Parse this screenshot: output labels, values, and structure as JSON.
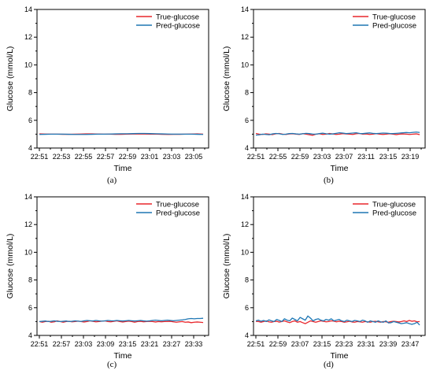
{
  "colors": {
    "true_series": "#e8262c",
    "pred_series": "#1f77b4"
  },
  "panels": [
    {
      "caption": "(a)",
      "chart_data": {
        "type": "line",
        "xlabel": "Time",
        "ylabel": "Glucose (mmol/L)",
        "ylim": [
          4,
          14
        ],
        "yticks": [
          4,
          6,
          8,
          10,
          12,
          14
        ],
        "xticklabels": [
          "22:51",
          "22:53",
          "22:55",
          "22:57",
          "22:59",
          "23:01",
          "23:03",
          "23:05"
        ],
        "legend": "top-right",
        "series": [
          {
            "name": "True-glucose",
            "color": "#e8262c",
            "values": [
              5.02,
              5.01,
              5.0,
              5.0,
              4.99,
              4.99,
              5.0,
              5.01,
              5.02,
              5.02,
              5.01,
              5.0,
              5.0,
              4.99,
              4.99,
              5.0,
              5.01,
              5.02,
              5.01,
              5.0,
              5.0,
              4.99,
              4.98,
              4.99,
              4.99,
              5.0,
              5.01,
              5.02,
              5.0
            ]
          },
          {
            "name": "Pred-glucose",
            "color": "#1f77b4",
            "values": [
              4.98,
              4.99,
              5.0,
              5.0,
              5.0,
              4.99,
              4.98,
              4.98,
              4.98,
              4.99,
              5.0,
              5.0,
              5.01,
              5.02,
              5.03,
              5.03,
              5.04,
              5.05,
              5.05,
              5.04,
              5.03,
              5.02,
              5.01,
              5.0,
              5.0,
              5.0,
              5.0,
              4.99,
              4.98
            ]
          }
        ]
      }
    },
    {
      "caption": "(b)",
      "chart_data": {
        "type": "line",
        "xlabel": "Time",
        "ylabel": "Glucose (mmol/L)",
        "ylim": [
          4,
          14
        ],
        "yticks": [
          4,
          6,
          8,
          10,
          12,
          14
        ],
        "xticklabels": [
          "22:51",
          "22:55",
          "22:59",
          "23:03",
          "23:07",
          "23:11",
          "23:15",
          "23:19"
        ],
        "legend": "top-right",
        "series": [
          {
            "name": "True-glucose",
            "color": "#e8262c",
            "values": [
              5.05,
              5.0,
              4.98,
              5.02,
              5.0,
              4.97,
              5.03,
              5.05,
              5.0,
              4.98,
              5.02,
              5.03,
              5.0,
              4.98,
              5.04,
              5.0,
              4.96,
              4.92,
              5.0,
              5.03,
              4.98,
              5.0,
              5.05,
              5.02,
              4.98,
              5.0,
              5.04,
              5.02,
              5.0,
              4.98,
              5.03,
              5.05,
              5.0,
              5.02,
              4.98,
              5.0,
              5.04,
              5.0,
              4.98,
              5.0,
              5.03,
              5.0,
              4.97,
              5.0,
              5.02,
              5.0,
              4.98,
              5.0,
              5.02,
              4.97
            ]
          },
          {
            "name": "Pred-glucose",
            "color": "#1f77b4",
            "values": [
              4.93,
              4.95,
              5.0,
              4.98,
              4.96,
              5.02,
              5.05,
              5.03,
              4.98,
              5.0,
              5.04,
              5.05,
              5.02,
              5.0,
              5.03,
              5.06,
              5.04,
              5.01,
              5.0,
              5.04,
              5.07,
              5.03,
              5.0,
              5.02,
              5.06,
              5.1,
              5.08,
              5.04,
              5.06,
              5.08,
              5.1,
              5.05,
              5.04,
              5.07,
              5.09,
              5.06,
              5.04,
              5.06,
              5.08,
              5.07,
              5.05,
              5.04,
              5.06,
              5.08,
              5.1,
              5.12,
              5.1,
              5.13,
              5.15,
              5.12
            ]
          }
        ]
      }
    },
    {
      "caption": "(c)",
      "chart_data": {
        "type": "line",
        "xlabel": "Time",
        "ylabel": "Glucose (mmol/L)",
        "ylim": [
          4,
          14
        ],
        "yticks": [
          4,
          6,
          8,
          10,
          12,
          14
        ],
        "xticklabels": [
          "22:51",
          "22:57",
          "23:03",
          "23:09",
          "23:15",
          "23:21",
          "23:27",
          "23:33"
        ],
        "legend": "top-right",
        "series": [
          {
            "name": "True-glucose",
            "color": "#e8262c",
            "values": [
              5.0,
              4.95,
              5.0,
              5.02,
              4.95,
              4.98,
              5.05,
              5.0,
              4.95,
              5.0,
              5.02,
              4.98,
              5.0,
              5.03,
              5.0,
              4.97,
              5.0,
              5.05,
              5.02,
              4.98,
              5.0,
              5.03,
              5.05,
              5.0,
              4.98,
              5.02,
              5.05,
              5.0,
              4.97,
              5.0,
              5.03,
              5.0,
              4.95,
              5.0,
              5.02,
              4.98,
              5.0,
              5.02,
              5.0,
              4.97,
              5.0,
              4.98,
              5.0,
              5.0,
              5.02,
              4.98,
              4.95,
              4.98,
              5.0,
              4.95,
              4.97,
              4.92,
              4.95,
              4.97,
              4.95,
              4.93
            ]
          },
          {
            "name": "Pred-glucose",
            "color": "#1f77b4",
            "values": [
              5.0,
              5.02,
              5.04,
              5.0,
              5.02,
              5.05,
              5.02,
              5.0,
              5.02,
              5.04,
              5.0,
              5.02,
              5.05,
              5.03,
              5.01,
              5.05,
              5.08,
              5.06,
              5.04,
              5.08,
              5.05,
              5.03,
              5.05,
              5.08,
              5.06,
              5.05,
              5.08,
              5.06,
              5.04,
              5.06,
              5.08,
              5.06,
              5.04,
              5.06,
              5.08,
              5.05,
              5.03,
              5.05,
              5.08,
              5.1,
              5.08,
              5.06,
              5.08,
              5.1,
              5.08,
              5.06,
              5.08,
              5.1,
              5.12,
              5.15,
              5.2,
              5.22,
              5.2,
              5.22,
              5.22,
              5.24
            ]
          }
        ]
      }
    },
    {
      "caption": "(d)",
      "chart_data": {
        "type": "line",
        "xlabel": "Time",
        "ylabel": "Glucose (mmol/L)",
        "ylim": [
          4,
          14
        ],
        "yticks": [
          4,
          6,
          8,
          10,
          12,
          14
        ],
        "xticklabels": [
          "22:51",
          "22:59",
          "23:07",
          "23:15",
          "23:23",
          "23:31",
          "23:39",
          "23:47"
        ],
        "legend": "top-right",
        "series": [
          {
            "name": "True-glucose",
            "color": "#e8262c",
            "values": [
              5.02,
              5.0,
              4.95,
              5.0,
              5.05,
              4.98,
              4.95,
              5.0,
              5.02,
              4.96,
              5.0,
              5.05,
              4.98,
              4.92,
              5.0,
              5.05,
              4.95,
              5.0,
              4.92,
              4.85,
              4.95,
              5.05,
              5.0,
              4.95,
              5.0,
              5.05,
              5.02,
              4.98,
              5.0,
              5.05,
              5.03,
              4.98,
              5.02,
              5.0,
              4.95,
              4.98,
              5.02,
              4.97,
              4.95,
              5.0,
              4.98,
              4.95,
              5.0,
              4.98,
              4.95,
              5.0,
              5.02,
              4.98,
              4.95,
              5.0,
              4.98,
              4.95,
              5.0,
              5.02,
              5.0,
              4.97,
              5.0,
              5.05,
              5.0,
              5.08,
              5.02,
              5.05,
              4.98,
              5.0
            ]
          },
          {
            "name": "Pred-glucose",
            "color": "#1f77b4",
            "values": [
              5.05,
              5.1,
              5.02,
              5.08,
              5.0,
              5.12,
              5.05,
              5.0,
              5.15,
              5.08,
              5.0,
              5.2,
              5.1,
              5.05,
              5.25,
              5.15,
              5.05,
              5.3,
              5.2,
              5.1,
              5.4,
              5.25,
              5.05,
              5.15,
              5.2,
              5.1,
              5.05,
              5.15,
              5.1,
              5.2,
              5.05,
              5.1,
              5.15,
              5.05,
              5.0,
              5.1,
              5.05,
              5.0,
              5.08,
              5.05,
              5.0,
              5.1,
              5.05,
              4.95,
              5.05,
              5.0,
              4.95,
              5.05,
              4.98,
              4.95,
              5.05,
              4.9,
              4.92,
              5.0,
              4.95,
              4.9,
              4.85,
              4.88,
              4.92,
              4.85,
              4.8,
              4.85,
              4.95,
              4.75
            ]
          }
        ]
      }
    }
  ]
}
